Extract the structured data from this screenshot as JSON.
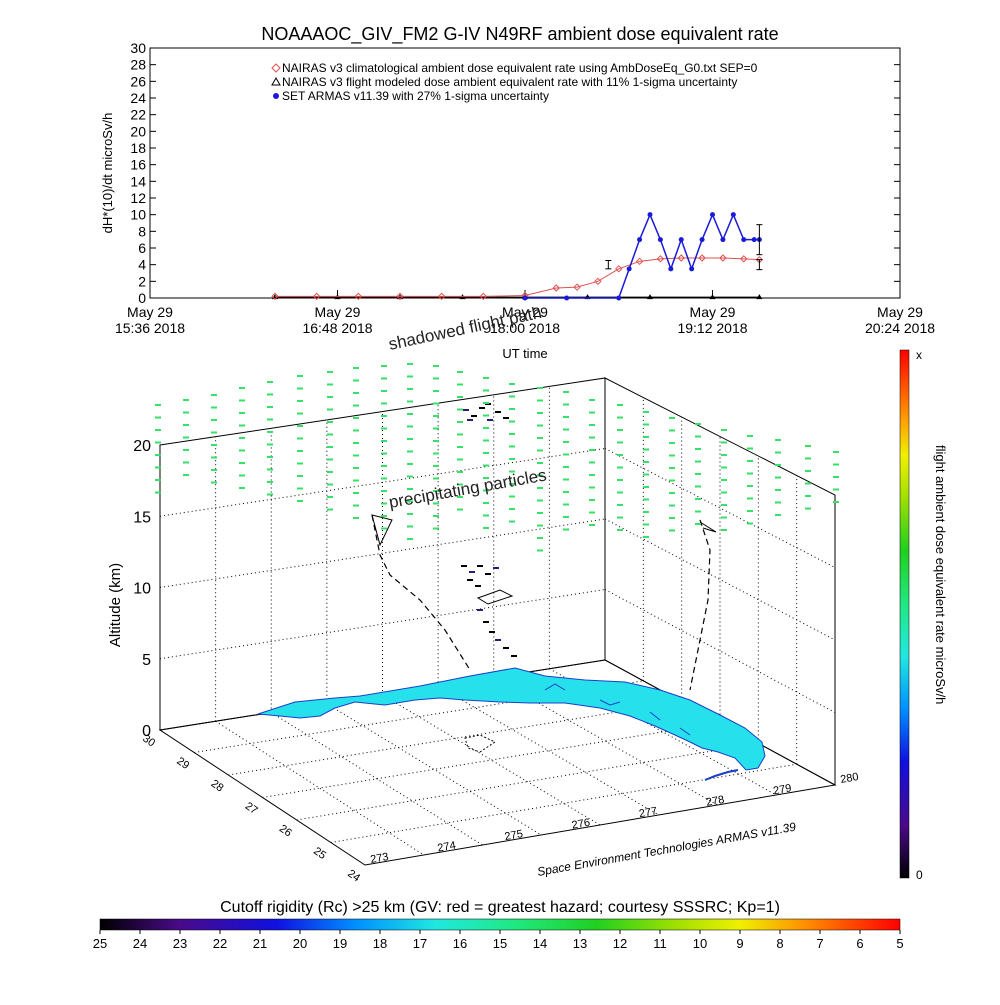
{
  "page_title": "NOAAAOC_GIV_FM2 G-IV    N49RF   ambient dose equivalent rate",
  "chart_data": [
    {
      "type": "scatter",
      "title": "NOAAAOC_GIV_FM2 G-IV    N49RF   ambient dose equivalent rate",
      "ylabel": "dH*(10)/dt microSv/h",
      "xlabel": "UT time",
      "ylim": [
        0,
        30
      ],
      "yticks": [
        "0",
        "2",
        "4",
        "6",
        "8",
        "10",
        "12",
        "14",
        "16",
        "18",
        "20",
        "22",
        "24",
        "26",
        "28",
        "30"
      ],
      "xticks": [
        {
          "date": "May 29",
          "time": "15:36 2018"
        },
        {
          "date": "May 29",
          "time": "16:48 2018"
        },
        {
          "date": "May 29",
          "time": "18:00 2018"
        },
        {
          "date": "May 29",
          "time": "19:12 2018"
        },
        {
          "date": "May 29",
          "time": "20:24 2018"
        }
      ],
      "legend_position": "top-right",
      "legend": [
        {
          "label": "NAIRAS v3 climatological ambient dose equivalent rate using AmbDoseEq_G0.txt SEP=0",
          "color": "#e05050",
          "marker": "diamond"
        },
        {
          "label": "NAIRAS v3 flight modeled dose ambient equivalent rate with 11% 1-sigma uncertainty",
          "color": "#000000",
          "marker": "triangle"
        },
        {
          "label": "SET ARMAS v11.39 with 27% 1-sigma uncertainty",
          "color": "#1a1ad8",
          "marker": "circle"
        }
      ],
      "series": [
        {
          "name": "NAIRAS v3 climatological ambient dose equivalent rate using AmbDoseEq_G0.txt SEP=0",
          "color": "#e05050",
          "x": [
            "16:24",
            "16:40",
            "16:56",
            "17:12",
            "17:28",
            "17:44",
            "18:00",
            "18:12",
            "18:20",
            "18:28",
            "18:36",
            "18:44",
            "18:52",
            "19:00",
            "19:08",
            "19:16",
            "19:24",
            "19:30"
          ],
          "y": [
            0.2,
            0.2,
            0.2,
            0.2,
            0.2,
            0.2,
            0.3,
            1.2,
            1.3,
            2.0,
            3.5,
            4.4,
            4.7,
            4.8,
            4.8,
            4.8,
            4.7,
            4.6
          ]
        },
        {
          "name": "NAIRAS v3 flight modeled dose ambient equivalent rate with 11% 1-sigma uncertainty",
          "color": "#000000",
          "x": [
            "16:24",
            "16:48",
            "17:12",
            "17:36",
            "18:00",
            "18:24",
            "18:48",
            "19:12",
            "19:30"
          ],
          "y": [
            0.1,
            0.1,
            0.1,
            0.1,
            0.1,
            0.1,
            0.1,
            0.1,
            0.1
          ]
        },
        {
          "name": "SET ARMAS v11.39 with 27% 1-sigma uncertainty",
          "color": "#1a1ad8",
          "x": [
            "18:00",
            "18:16",
            "18:36",
            "18:40",
            "18:44",
            "18:48",
            "18:52",
            "18:56",
            "19:00",
            "19:04",
            "19:08",
            "19:12",
            "19:16",
            "19:20",
            "19:24",
            "19:28",
            "19:30"
          ],
          "y": [
            0,
            0,
            0,
            3.5,
            7,
            10,
            7,
            3.5,
            7,
            3.5,
            7,
            10,
            7,
            10,
            7,
            7,
            7
          ]
        }
      ],
      "error_bars": [
        {
          "x": "18:32",
          "y": 4.0,
          "err": 0.5
        },
        {
          "x": "19:30",
          "y": 4.0,
          "err": 0.6
        },
        {
          "x": "19:30",
          "y": 7.0,
          "err": 1.8
        }
      ],
      "grid": false
    },
    {
      "type": "scatter",
      "title": "",
      "zlabel": "Altitude (km)",
      "zlim": [
        0,
        20
      ],
      "zticks": [
        "0",
        "5",
        "10",
        "15",
        "20"
      ],
      "lat_ticks": [
        "30",
        "29",
        "28",
        "27",
        "26",
        "25",
        "24"
      ],
      "lon_ticks": [
        "273",
        "274",
        "275",
        "276",
        "277",
        "278",
        "279",
        "280"
      ],
      "annotations": [
        "shadowed flight path",
        "precipitating particles"
      ],
      "credit": "Space Environment Technologies ARMAS v11.39",
      "colorbar": {
        "label": "flight ambient dose equivalent rate microSv/h",
        "min_label": "0",
        "max_label": "x",
        "orientation": "vertical"
      },
      "grid": true
    },
    {
      "type": "heatmap",
      "title": "Cutoff rigidity (Rc) >25 km (GV: red = greatest hazard; courtesy SSSRC; Kp=1)",
      "ticks": [
        "25",
        "24",
        "23",
        "22",
        "21",
        "20",
        "19",
        "18",
        "17",
        "16",
        "15",
        "14",
        "13",
        "12",
        "11",
        "10",
        "9",
        "8",
        "7",
        "6",
        "5"
      ],
      "orientation": "horizontal"
    }
  ],
  "colors": {
    "red_series": "#e05050",
    "blue_series": "#1a1ad8",
    "land": "#26e0ec",
    "particles": "#33e266"
  }
}
